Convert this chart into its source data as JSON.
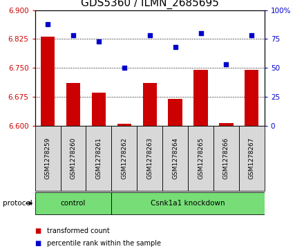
{
  "title": "GDS5360 / ILMN_2685695",
  "samples": [
    "GSM1278259",
    "GSM1278260",
    "GSM1278261",
    "GSM1278262",
    "GSM1278263",
    "GSM1278264",
    "GSM1278265",
    "GSM1278266",
    "GSM1278267"
  ],
  "red_values": [
    6.83,
    6.71,
    6.685,
    6.605,
    6.71,
    6.67,
    6.745,
    6.607,
    6.745
  ],
  "blue_values": [
    88,
    78,
    73,
    50,
    78,
    68,
    80,
    53,
    78
  ],
  "ylim_left": [
    6.6,
    6.9
  ],
  "ylim_right": [
    0,
    100
  ],
  "yticks_left": [
    6.6,
    6.675,
    6.75,
    6.825,
    6.9
  ],
  "yticks_right": [
    0,
    25,
    50,
    75,
    100
  ],
  "ytick_labels_right": [
    "0",
    "25",
    "50",
    "75",
    "100%"
  ],
  "bar_color": "#CC0000",
  "dot_color": "#0000CC",
  "bar_baseline": 6.6,
  "ctrl_count": 3,
  "csnk_count": 6,
  "group_labels": [
    "control",
    "Csnk1a1 knockdown"
  ],
  "group_color": "#77DD77",
  "protocol_label": "protocol",
  "legend_items": [
    {
      "label": "transformed count",
      "color": "#CC0000"
    },
    {
      "label": "percentile rank within the sample",
      "color": "#0000CC"
    }
  ],
  "panel_bg": "#D8D8D8",
  "title_fontsize": 11,
  "tick_fontsize": 7.5,
  "label_fontsize": 6.5,
  "left_tick_color": "#CC0000",
  "right_tick_color": "#0000CC"
}
